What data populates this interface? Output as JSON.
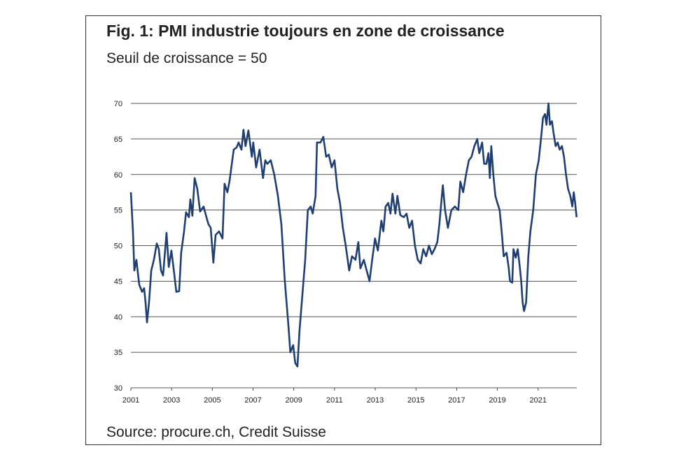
{
  "chart_data": {
    "type": "line",
    "title": "Fig. 1: PMI industrie toujours en zone de croissance",
    "subtitle": "Seuil de croissance = 50",
    "source": "Source: procure.ch, Credit Suisse",
    "x": [
      2001.0,
      2001.1,
      2001.17,
      2001.27,
      2001.41,
      2001.55,
      2001.65,
      2001.72,
      2001.79,
      2001.89,
      2002.0,
      2002.13,
      2002.27,
      2002.37,
      2002.48,
      2002.58,
      2002.75,
      2002.86,
      2002.99,
      2003.13,
      2003.23,
      2003.37,
      2003.47,
      2003.61,
      2003.71,
      2003.85,
      2003.92,
      2004.02,
      2004.13,
      2004.26,
      2004.4,
      2004.57,
      2004.71,
      2004.81,
      2004.92,
      2005.05,
      2005.16,
      2005.33,
      2005.5,
      2005.6,
      2005.74,
      2005.84,
      2006.05,
      2006.19,
      2006.29,
      2006.43,
      2006.53,
      2006.63,
      2006.77,
      2006.94,
      2007.01,
      2007.15,
      2007.32,
      2007.49,
      2007.6,
      2007.7,
      2007.87,
      2008.04,
      2008.22,
      2008.39,
      2008.56,
      2008.73,
      2008.83,
      2008.97,
      2009.07,
      2009.18,
      2009.28,
      2009.42,
      2009.56,
      2009.69,
      2009.83,
      2009.93,
      2010.07,
      2010.14,
      2010.31,
      2010.45,
      2010.59,
      2010.72,
      2010.86,
      2011.0,
      2011.14,
      2011.27,
      2011.41,
      2011.55,
      2011.72,
      2011.86,
      2012.03,
      2012.17,
      2012.27,
      2012.44,
      2012.58,
      2012.72,
      2012.85,
      2012.99,
      2013.13,
      2013.3,
      2013.4,
      2013.51,
      2013.64,
      2013.75,
      2013.85,
      2013.99,
      2014.09,
      2014.23,
      2014.4,
      2014.54,
      2014.67,
      2014.81,
      2014.95,
      2015.09,
      2015.23,
      2015.36,
      2015.5,
      2015.64,
      2015.78,
      2015.91,
      2016.05,
      2016.15,
      2016.32,
      2016.43,
      2016.57,
      2016.74,
      2016.91,
      2017.08,
      2017.18,
      2017.32,
      2017.46,
      2017.6,
      2017.73,
      2017.87,
      2018.01,
      2018.11,
      2018.25,
      2018.35,
      2018.46,
      2018.56,
      2018.63,
      2018.7,
      2018.8,
      2018.9,
      2019.0,
      2019.11,
      2019.21,
      2019.31,
      2019.45,
      2019.55,
      2019.62,
      2019.73,
      2019.79,
      2019.9,
      2020.0,
      2020.1,
      2020.17,
      2020.24,
      2020.31,
      2020.41,
      2020.52,
      2020.62,
      2020.76,
      2020.89,
      2021.03,
      2021.14,
      2021.24,
      2021.34,
      2021.41,
      2021.51,
      2021.58,
      2021.68,
      2021.75,
      2021.86,
      2021.96,
      2022.06,
      2022.17,
      2022.27,
      2022.37,
      2022.47,
      2022.58,
      2022.68,
      2022.75,
      2022.82,
      2022.89
    ],
    "series": [
      {
        "name": "PMI",
        "color": "#1f3f73",
        "values": [
          57.5,
          52,
          46.5,
          48,
          44.5,
          43.5,
          44,
          42,
          39.2,
          42,
          46.5,
          48,
          50.3,
          49.5,
          46.5,
          45.8,
          51.8,
          47,
          49.3,
          46,
          43.5,
          43.6,
          49,
          52,
          54.7,
          54,
          56.5,
          54.2,
          59.5,
          58,
          54.8,
          55.5,
          54,
          53,
          52.5,
          47.6,
          51.5,
          52,
          51,
          58.7,
          57.5,
          59,
          63.5,
          63.8,
          64.5,
          63.5,
          66.3,
          64,
          66.2,
          62.5,
          64.5,
          61,
          63.5,
          59.5,
          62,
          61.5,
          62,
          60,
          57,
          53,
          45,
          39,
          35,
          36,
          33.5,
          33,
          38,
          43,
          48,
          55,
          55.5,
          54.5,
          57,
          64.5,
          64.5,
          65.3,
          62.5,
          62.8,
          61,
          62,
          58,
          56,
          52.5,
          50,
          46.5,
          48.5,
          48,
          50.5,
          46.8,
          48,
          46.5,
          45,
          48,
          51,
          49.3,
          53.5,
          52,
          55.5,
          56,
          54.5,
          57.3,
          54.5,
          57,
          54.3,
          54,
          54.5,
          52.5,
          53.5,
          50,
          48,
          47.5,
          49.5,
          48.5,
          50,
          48.8,
          49.5,
          50.5,
          53,
          58.5,
          55,
          52.5,
          55,
          55.5,
          55,
          59,
          57.5,
          60,
          62,
          62.5,
          64,
          65,
          63,
          64.5,
          61.5,
          61.5,
          63,
          59.5,
          64,
          60,
          57,
          56,
          55,
          52,
          48.5,
          49,
          47,
          45,
          44.8,
          49.5,
          48.3,
          49.5,
          47,
          45,
          42,
          40.8,
          42,
          48.5,
          52,
          55,
          60,
          62,
          65,
          68,
          68.5,
          67,
          70,
          67,
          67.5,
          66,
          64,
          64.5,
          63.5,
          64,
          62.5,
          60,
          58,
          57,
          55.5,
          57.5,
          56,
          54
        ]
      }
    ],
    "xlim": [
      2001,
      2022.9
    ],
    "xticks": [
      2001,
      2003,
      2005,
      2007,
      2009,
      2011,
      2013,
      2015,
      2017,
      2019,
      2021
    ],
    "ylim": [
      30,
      70
    ],
    "yticks": [
      30,
      35,
      40,
      45,
      50,
      55,
      60,
      65,
      70
    ],
    "grid": true
  }
}
